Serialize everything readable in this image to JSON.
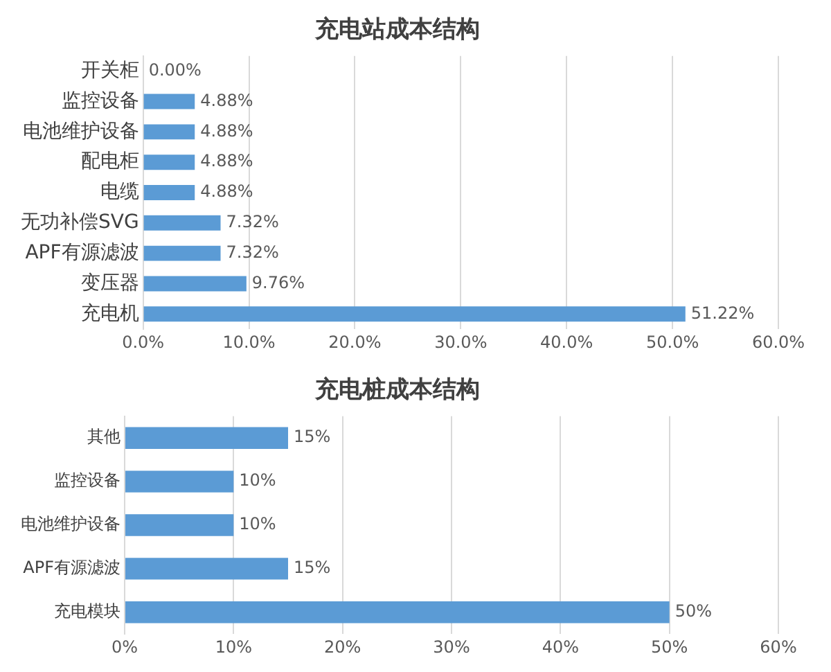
{
  "chart_data": [
    {
      "type": "bar",
      "orientation": "horizontal",
      "title": "充电站成本结构",
      "categories": [
        "开关柜",
        "监控设备",
        "电池维护设备",
        "配电柜",
        "电缆",
        "无功补偿SVG",
        "APF有源滤波",
        "变压器",
        "充电机"
      ],
      "values": [
        0,
        4.88,
        4.88,
        4.88,
        4.88,
        7.32,
        7.32,
        9.76,
        51.22
      ],
      "value_labels": [
        "0.00%",
        "4.88%",
        "4.88%",
        "4.88%",
        "4.88%",
        "7.32%",
        "7.32%",
        "9.76%",
        "51.22%"
      ],
      "color": "#5b9bd5",
      "xlim": [
        0,
        60
      ],
      "xticks": [
        {
          "value": 0,
          "label": "0.0%"
        },
        {
          "value": 10,
          "label": "10.0%"
        },
        {
          "value": 20,
          "label": "20.0%"
        },
        {
          "value": 30,
          "label": "30.0%"
        },
        {
          "value": 40,
          "label": "40.0%"
        },
        {
          "value": 50,
          "label": "50.0%"
        },
        {
          "value": 60,
          "label": "60.0%"
        }
      ],
      "grid": "x",
      "legend": false
    },
    {
      "type": "bar",
      "orientation": "horizontal",
      "title": "充电桩成本结构",
      "categories": [
        "其他",
        "监控设备",
        "电池维护设备",
        "APF有源滤波",
        "充电模块"
      ],
      "values": [
        15,
        10,
        10,
        15,
        50
      ],
      "value_labels": [
        "15%",
        "10%",
        "10%",
        "15%",
        "50%"
      ],
      "color": "#5b9bd5",
      "xlim": [
        0,
        60
      ],
      "xticks": [
        {
          "value": 0,
          "label": "0%"
        },
        {
          "value": 10,
          "label": "10%"
        },
        {
          "value": 20,
          "label": "20%"
        },
        {
          "value": 30,
          "label": "30%"
        },
        {
          "value": 40,
          "label": "40%"
        },
        {
          "value": 50,
          "label": "50%"
        },
        {
          "value": 60,
          "label": "60%"
        }
      ],
      "grid": "x",
      "legend": false
    }
  ]
}
